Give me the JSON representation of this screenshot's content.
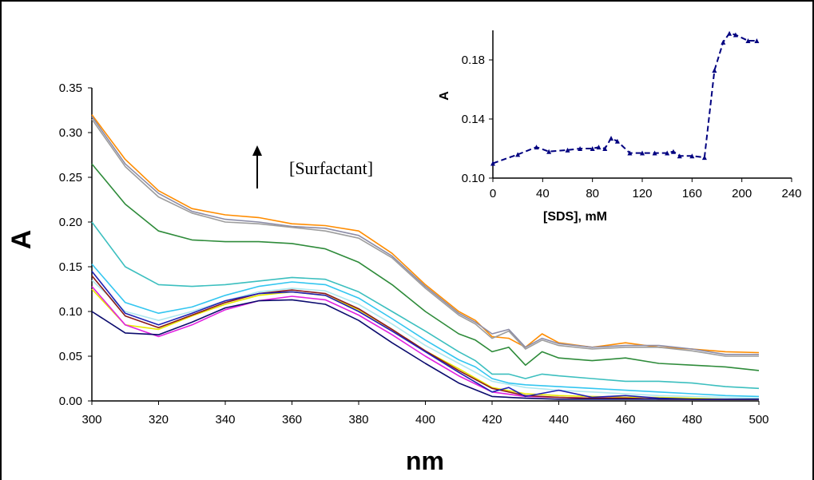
{
  "chart_data": [
    {
      "type": "line",
      "xlabel": "nm",
      "ylabel": "A",
      "xlim": [
        300,
        500
      ],
      "ylim": [
        0,
        0.35
      ],
      "x_ticks": [
        "300",
        "320",
        "340",
        "360",
        "380",
        "400",
        "420",
        "440",
        "460",
        "480",
        "500"
      ],
      "y_ticks": [
        "0.00",
        "0.05",
        "0.10",
        "0.15",
        "0.20",
        "0.25",
        "0.30",
        "0.35"
      ],
      "grid": false,
      "annotation": "[Surfactant]",
      "annotation_arrow": "up",
      "series": [
        {
          "color": "#ff8c00",
          "x": [
            300,
            310,
            320,
            330,
            340,
            350,
            360,
            370,
            380,
            390,
            400,
            410,
            415,
            420,
            425,
            430,
            435,
            440,
            450,
            460,
            470,
            480,
            490,
            500
          ],
          "y": [
            0.32,
            0.27,
            0.235,
            0.215,
            0.208,
            0.205,
            0.198,
            0.196,
            0.19,
            0.165,
            0.13,
            0.1,
            0.09,
            0.072,
            0.07,
            0.06,
            0.075,
            0.065,
            0.06,
            0.065,
            0.06,
            0.058,
            0.055,
            0.054
          ]
        },
        {
          "color": "#8c8ca6",
          "x": [
            300,
            310,
            320,
            330,
            340,
            350,
            360,
            370,
            380,
            390,
            400,
            410,
            415,
            420,
            425,
            430,
            435,
            440,
            450,
            460,
            470,
            480,
            490,
            500
          ],
          "y": [
            0.318,
            0.265,
            0.232,
            0.212,
            0.203,
            0.2,
            0.195,
            0.193,
            0.185,
            0.162,
            0.128,
            0.098,
            0.088,
            0.075,
            0.08,
            0.06,
            0.07,
            0.064,
            0.06,
            0.062,
            0.062,
            0.058,
            0.052,
            0.052
          ]
        },
        {
          "color": "#9d9d9d",
          "x": [
            300,
            310,
            320,
            330,
            340,
            350,
            360,
            370,
            380,
            390,
            400,
            410,
            415,
            420,
            425,
            430,
            435,
            440,
            450,
            460,
            470,
            480,
            490,
            500
          ],
          "y": [
            0.315,
            0.262,
            0.228,
            0.21,
            0.2,
            0.198,
            0.194,
            0.19,
            0.182,
            0.16,
            0.126,
            0.096,
            0.086,
            0.07,
            0.078,
            0.058,
            0.068,
            0.062,
            0.058,
            0.06,
            0.06,
            0.056,
            0.05,
            0.05
          ]
        },
        {
          "color": "#2e8b3a",
          "x": [
            300,
            310,
            320,
            330,
            340,
            350,
            360,
            370,
            380,
            390,
            400,
            410,
            415,
            420,
            425,
            430,
            435,
            440,
            450,
            460,
            470,
            480,
            490,
            500
          ],
          "y": [
            0.265,
            0.22,
            0.19,
            0.18,
            0.178,
            0.178,
            0.176,
            0.17,
            0.155,
            0.13,
            0.1,
            0.075,
            0.068,
            0.055,
            0.06,
            0.04,
            0.055,
            0.048,
            0.045,
            0.048,
            0.042,
            0.04,
            0.038,
            0.034
          ]
        },
        {
          "color": "#3cbfbf",
          "x": [
            300,
            310,
            320,
            330,
            340,
            350,
            360,
            370,
            380,
            390,
            400,
            410,
            415,
            420,
            425,
            430,
            435,
            440,
            450,
            460,
            470,
            480,
            490,
            500
          ],
          "y": [
            0.2,
            0.15,
            0.13,
            0.128,
            0.13,
            0.134,
            0.138,
            0.136,
            0.122,
            0.1,
            0.078,
            0.055,
            0.045,
            0.03,
            0.03,
            0.025,
            0.03,
            0.028,
            0.025,
            0.022,
            0.022,
            0.02,
            0.016,
            0.014
          ]
        },
        {
          "color": "#33c6f0",
          "x": [
            300,
            310,
            320,
            330,
            340,
            350,
            360,
            370,
            380,
            390,
            400,
            410,
            415,
            420,
            425,
            430,
            440,
            450,
            460,
            470,
            480,
            490,
            500
          ],
          "y": [
            0.153,
            0.11,
            0.098,
            0.105,
            0.118,
            0.128,
            0.133,
            0.13,
            0.115,
            0.092,
            0.068,
            0.046,
            0.038,
            0.025,
            0.02,
            0.018,
            0.016,
            0.014,
            0.012,
            0.01,
            0.008,
            0.006,
            0.005
          ]
        },
        {
          "color": "#aee8f0",
          "x": [
            300,
            310,
            320,
            330,
            340,
            350,
            360,
            370,
            380,
            390,
            400,
            410,
            420,
            430,
            440,
            450,
            460,
            470,
            480,
            490,
            500
          ],
          "y": [
            0.135,
            0.1,
            0.09,
            0.1,
            0.112,
            0.122,
            0.126,
            0.123,
            0.108,
            0.086,
            0.062,
            0.042,
            0.022,
            0.015,
            0.012,
            0.01,
            0.008,
            0.006,
            0.005,
            0.004,
            0.003
          ]
        },
        {
          "color": "#e8e800",
          "x": [
            300,
            310,
            320,
            330,
            340,
            350,
            360,
            370,
            380,
            390,
            400,
            410,
            420,
            430,
            440,
            450,
            460,
            470,
            480,
            490,
            500
          ],
          "y": [
            0.125,
            0.085,
            0.08,
            0.095,
            0.108,
            0.118,
            0.122,
            0.118,
            0.102,
            0.08,
            0.056,
            0.036,
            0.015,
            0.008,
            0.006,
            0.005,
            0.004,
            0.004,
            0.003,
            0.002,
            0.002
          ]
        },
        {
          "color": "#e020e0",
          "x": [
            300,
            310,
            320,
            330,
            340,
            350,
            360,
            370,
            380,
            390,
            400,
            410,
            420,
            430,
            440,
            450,
            460,
            470,
            480,
            490,
            500
          ],
          "y": [
            0.128,
            0.085,
            0.072,
            0.085,
            0.102,
            0.112,
            0.117,
            0.113,
            0.096,
            0.074,
            0.05,
            0.028,
            0.01,
            0.005,
            0.004,
            0.003,
            0.003,
            0.002,
            0.002,
            0.002,
            0.002
          ]
        },
        {
          "color": "#8b1a1a",
          "x": [
            300,
            310,
            320,
            330,
            340,
            350,
            360,
            370,
            380,
            390,
            400,
            410,
            420,
            430,
            440,
            450,
            460,
            470,
            480,
            490,
            500
          ],
          "y": [
            0.14,
            0.095,
            0.082,
            0.096,
            0.11,
            0.12,
            0.124,
            0.12,
            0.103,
            0.08,
            0.056,
            0.034,
            0.014,
            0.006,
            0.004,
            0.003,
            0.003,
            0.002,
            0.002,
            0.002,
            0.002
          ]
        },
        {
          "color": "#1f1fb4",
          "x": [
            300,
            310,
            320,
            330,
            340,
            350,
            360,
            370,
            380,
            390,
            400,
            410,
            420,
            425,
            430,
            440,
            450,
            460,
            470,
            480,
            490,
            500
          ],
          "y": [
            0.145,
            0.098,
            0.085,
            0.098,
            0.112,
            0.12,
            0.122,
            0.118,
            0.1,
            0.078,
            0.055,
            0.032,
            0.01,
            0.015,
            0.005,
            0.012,
            0.004,
            0.006,
            0.003,
            0.002,
            0.002,
            0.002
          ]
        },
        {
          "color": "#0b0b6e",
          "x": [
            300,
            310,
            320,
            330,
            340,
            350,
            360,
            370,
            380,
            390,
            400,
            410,
            420,
            430,
            440,
            450,
            460,
            470,
            480,
            490,
            500
          ],
          "y": [
            0.1,
            0.076,
            0.074,
            0.088,
            0.104,
            0.112,
            0.113,
            0.108,
            0.09,
            0.065,
            0.042,
            0.02,
            0.005,
            0.003,
            0.002,
            0.002,
            0.002,
            0.002,
            0.002,
            0.002,
            0.002
          ]
        }
      ]
    },
    {
      "type": "line",
      "xlabel": "[SDS], mM",
      "ylabel": "A",
      "xlim": [
        0,
        240
      ],
      "ylim": [
        0.1,
        0.2
      ],
      "x_ticks": [
        "0",
        "40",
        "80",
        "120",
        "160",
        "200",
        "240"
      ],
      "y_ticks": [
        "0.10",
        "0.14",
        "0.18"
      ],
      "grid": false,
      "series": [
        {
          "color": "#000080",
          "style": "dashed",
          "marker": "triangle",
          "x": [
            0,
            20,
            35,
            45,
            60,
            70,
            80,
            85,
            90,
            95,
            100,
            110,
            120,
            130,
            140,
            145,
            150,
            160,
            170,
            178,
            185,
            190,
            195,
            205,
            212
          ],
          "y": [
            0.11,
            0.116,
            0.121,
            0.118,
            0.119,
            0.12,
            0.12,
            0.121,
            0.12,
            0.127,
            0.125,
            0.117,
            0.117,
            0.117,
            0.117,
            0.118,
            0.115,
            0.115,
            0.114,
            0.173,
            0.192,
            0.198,
            0.197,
            0.193,
            0.193
          ]
        }
      ]
    }
  ]
}
